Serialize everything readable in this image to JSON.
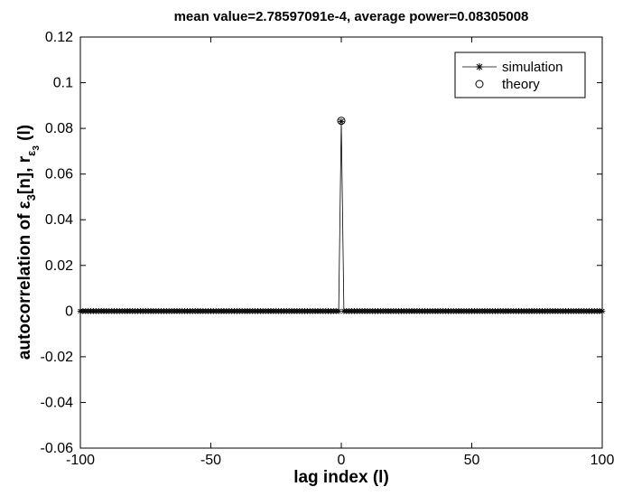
{
  "chart_data": {
    "type": "line",
    "title": "mean value=2.78597091e-4, average power=0.08305008",
    "xlabel": "lag index (l)",
    "ylabel": {
      "prefix": "autocorrelation of ",
      "epsilon": "ε",
      "sub3": "3",
      "mid": "[n], r",
      "suffix": " (l)"
    },
    "xlim": [
      -100,
      100
    ],
    "ylim": [
      -0.06,
      0.12
    ],
    "xticks": [
      -100,
      -50,
      0,
      50,
      100
    ],
    "yticks": [
      -0.06,
      -0.04,
      -0.02,
      0,
      0.02,
      0.04,
      0.06,
      0.08,
      0.1,
      0.12
    ],
    "xtick_labels": [
      "-100",
      "-50",
      "0",
      "50",
      "100"
    ],
    "ytick_labels": [
      "-0.06",
      "-0.04",
      "-0.02",
      "0",
      "0.02",
      "0.04",
      "0.06",
      "0.08",
      "0.1",
      "0.12"
    ],
    "grid": false,
    "legend_position": "top-right",
    "series": [
      {
        "name": "simulation",
        "marker": "asterisk",
        "line": "solid",
        "x_start": -100,
        "x_end": 100,
        "x_step": 1,
        "default_value": 0,
        "spikes": [
          {
            "x": 0,
            "y": 0.08305
          }
        ]
      },
      {
        "name": "theory",
        "marker": "circle",
        "line": "none",
        "points": [
          {
            "x": 0,
            "y": 0.08333
          }
        ]
      }
    ]
  }
}
